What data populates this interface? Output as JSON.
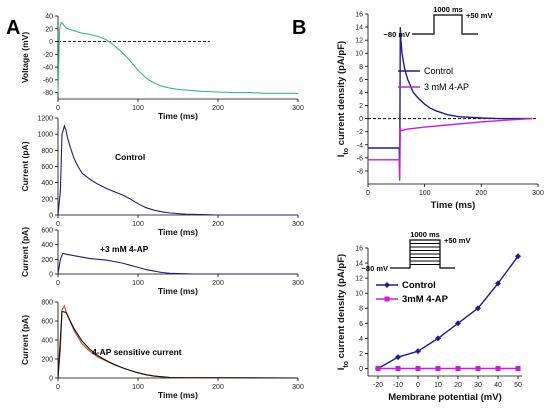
{
  "panels": {
    "a": "A",
    "b": "B"
  },
  "chart_data": [
    {
      "id": "a1",
      "type": "line",
      "ylabel": "Voltage (mV)",
      "xlabel": "Time (ms)",
      "xlim": [
        0,
        300
      ],
      "ylim": [
        -90,
        40
      ],
      "xticks": [
        0,
        100,
        200,
        300
      ],
      "yticks": [
        -80,
        -60,
        -40,
        -20,
        0,
        20,
        40
      ],
      "reference_line": 0,
      "series": [
        {
          "color": "#3fb58a",
          "x": [
            0,
            2,
            4,
            7,
            10,
            15,
            20,
            25,
            30,
            40,
            50,
            60,
            70,
            80,
            90,
            100,
            110,
            120,
            130,
            140,
            150,
            160,
            180,
            200,
            220,
            240,
            260,
            280,
            300
          ],
          "y": [
            -80,
            20,
            30,
            26,
            21,
            19,
            17,
            15,
            13,
            11,
            8,
            3,
            -6,
            -17,
            -30,
            -45,
            -57,
            -65,
            -70,
            -73,
            -75,
            -76,
            -78,
            -79,
            -80,
            -80,
            -81,
            -81,
            -81
          ]
        }
      ]
    },
    {
      "id": "a2",
      "type": "line",
      "ylabel": "Current (pA)",
      "xlabel": "Time (ms)",
      "xlim": [
        0,
        300
      ],
      "ylim": [
        0,
        1200
      ],
      "xticks": [
        0,
        100,
        200,
        300
      ],
      "yticks": [
        0,
        200,
        400,
        600,
        800,
        1000,
        1200
      ],
      "annotation": "Control",
      "series": [
        {
          "color": "#1f1f7a",
          "x": [
            0,
            3,
            5,
            8,
            10,
            12,
            15,
            20,
            25,
            30,
            40,
            50,
            60,
            70,
            80,
            90,
            100,
            110,
            120,
            130,
            140,
            160,
            180,
            200,
            250,
            300
          ],
          "y": [
            0,
            300,
            1000,
            1100,
            1050,
            950,
            850,
            700,
            600,
            520,
            440,
            380,
            330,
            290,
            250,
            200,
            140,
            90,
            60,
            40,
            25,
            10,
            5,
            0,
            0,
            0
          ]
        }
      ]
    },
    {
      "id": "a3",
      "type": "line",
      "ylabel": "Current (pA)",
      "xlabel": "Time (ms)",
      "xlim": [
        0,
        300
      ],
      "ylim": [
        0,
        600
      ],
      "xticks": [
        0,
        100,
        200,
        300
      ],
      "yticks": [
        0,
        200,
        400,
        600
      ],
      "annotation": "+3 mM 4-AP",
      "series": [
        {
          "color": "#1f1f7a",
          "x": [
            0,
            3,
            6,
            10,
            15,
            20,
            30,
            40,
            50,
            60,
            70,
            80,
            90,
            100,
            110,
            120,
            130,
            140,
            150,
            170,
            200,
            250,
            300
          ],
          "y": [
            0,
            200,
            280,
            270,
            260,
            250,
            230,
            210,
            200,
            190,
            170,
            150,
            120,
            90,
            60,
            40,
            20,
            10,
            5,
            0,
            0,
            0,
            0
          ]
        }
      ]
    },
    {
      "id": "a4",
      "type": "line",
      "ylabel": "Current (pA)",
      "xlabel": "Time (ms)",
      "xlim": [
        0,
        300
      ],
      "ylim": [
        0,
        800
      ],
      "xticks": [
        0,
        100,
        200,
        300
      ],
      "yticks": [
        0,
        200,
        400,
        600,
        800
      ],
      "annotation": "4-AP sensitive current",
      "series": [
        {
          "color": "#c94a12",
          "x": [
            0,
            3,
            5,
            8,
            10,
            15,
            20,
            25,
            30,
            40,
            50,
            60,
            70,
            80,
            90,
            100,
            110,
            120,
            140,
            160,
            200,
            300
          ],
          "y": [
            0,
            300,
            720,
            760,
            700,
            600,
            500,
            430,
            360,
            280,
            220,
            180,
            140,
            110,
            80,
            55,
            35,
            20,
            5,
            0,
            0,
            0
          ]
        },
        {
          "color": "#111111",
          "x": [
            0,
            5,
            10,
            20,
            30,
            40,
            50,
            60,
            70,
            80,
            90,
            100,
            110,
            120,
            140,
            300
          ],
          "y": [
            0,
            700,
            690,
            520,
            390,
            300,
            235,
            185,
            145,
            110,
            80,
            55,
            35,
            20,
            5,
            0
          ]
        }
      ]
    },
    {
      "id": "b1",
      "type": "line",
      "ylabel": "I",
      "ylabel_sub": "to",
      "ylabel_rest": " current density (pA/pF)",
      "xlabel": "Time (ms)",
      "xlim": [
        0,
        300
      ],
      "ylim": [
        -10,
        16
      ],
      "xticks": [
        0,
        100,
        200,
        300
      ],
      "yticks": [
        -8,
        -6,
        -4,
        -2,
        0,
        2,
        4,
        6,
        8,
        10,
        12,
        14,
        16
      ],
      "reference_line": 0,
      "protocol": {
        "duration": "1000 ms",
        "start": "−80 mV",
        "end": "+50 mV"
      },
      "legend_position": "top-right",
      "series": [
        {
          "name": "Control",
          "color": "#1f1f8a",
          "x": [
            0,
            55,
            56,
            57,
            58,
            60,
            62,
            65,
            70,
            75,
            80,
            90,
            100,
            110,
            120,
            140,
            160,
            180,
            200,
            230,
            260,
            290
          ],
          "y": [
            -4.5,
            -4.5,
            -9,
            14,
            12,
            10,
            9,
            7.5,
            6,
            5,
            4,
            3,
            2.2,
            1.6,
            1.2,
            0.6,
            0.3,
            0.2,
            0.1,
            0,
            0,
            0
          ]
        },
        {
          "name": "3 mM 4-AP",
          "color": "#c81ed6",
          "x": [
            0,
            55,
            56,
            57,
            58,
            60,
            70,
            100,
            150,
            200,
            250,
            290
          ],
          "y": [
            -6.3,
            -6.3,
            -9.5,
            -1.5,
            -1.8,
            -1.8,
            -1.6,
            -1.3,
            -0.9,
            -0.5,
            -0.2,
            0
          ]
        }
      ]
    },
    {
      "id": "b2",
      "type": "line",
      "ylabel": "I",
      "ylabel_sub": "to",
      "ylabel_rest": " current density (pA/pF)",
      "xlabel": "Membrane potential (mV)",
      "xlim": [
        -25,
        52
      ],
      "ylim": [
        -1,
        16
      ],
      "xticks": [
        -20,
        -10,
        0,
        10,
        20,
        30,
        40,
        50
      ],
      "yticks": [
        0,
        2,
        4,
        6,
        8,
        10,
        12,
        14,
        16
      ],
      "protocol": {
        "duration": "1000 ms",
        "start": "−80 mV",
        "end": "+50 mV"
      },
      "legend_position": "left",
      "series": [
        {
          "name": "Control",
          "color": "#1f1f8a",
          "marker": "diamond",
          "x": [
            -20,
            -10,
            0,
            10,
            20,
            30,
            40,
            50
          ],
          "y": [
            0,
            1.5,
            2.3,
            4.0,
            6.0,
            8.0,
            11.3,
            14.9
          ]
        },
        {
          "name": "3mM 4-AP",
          "color": "#c81ed6",
          "marker": "square",
          "x": [
            -20,
            -10,
            0,
            10,
            20,
            30,
            40,
            50
          ],
          "y": [
            0,
            0,
            0,
            0,
            0,
            0,
            0,
            0
          ]
        }
      ]
    }
  ]
}
